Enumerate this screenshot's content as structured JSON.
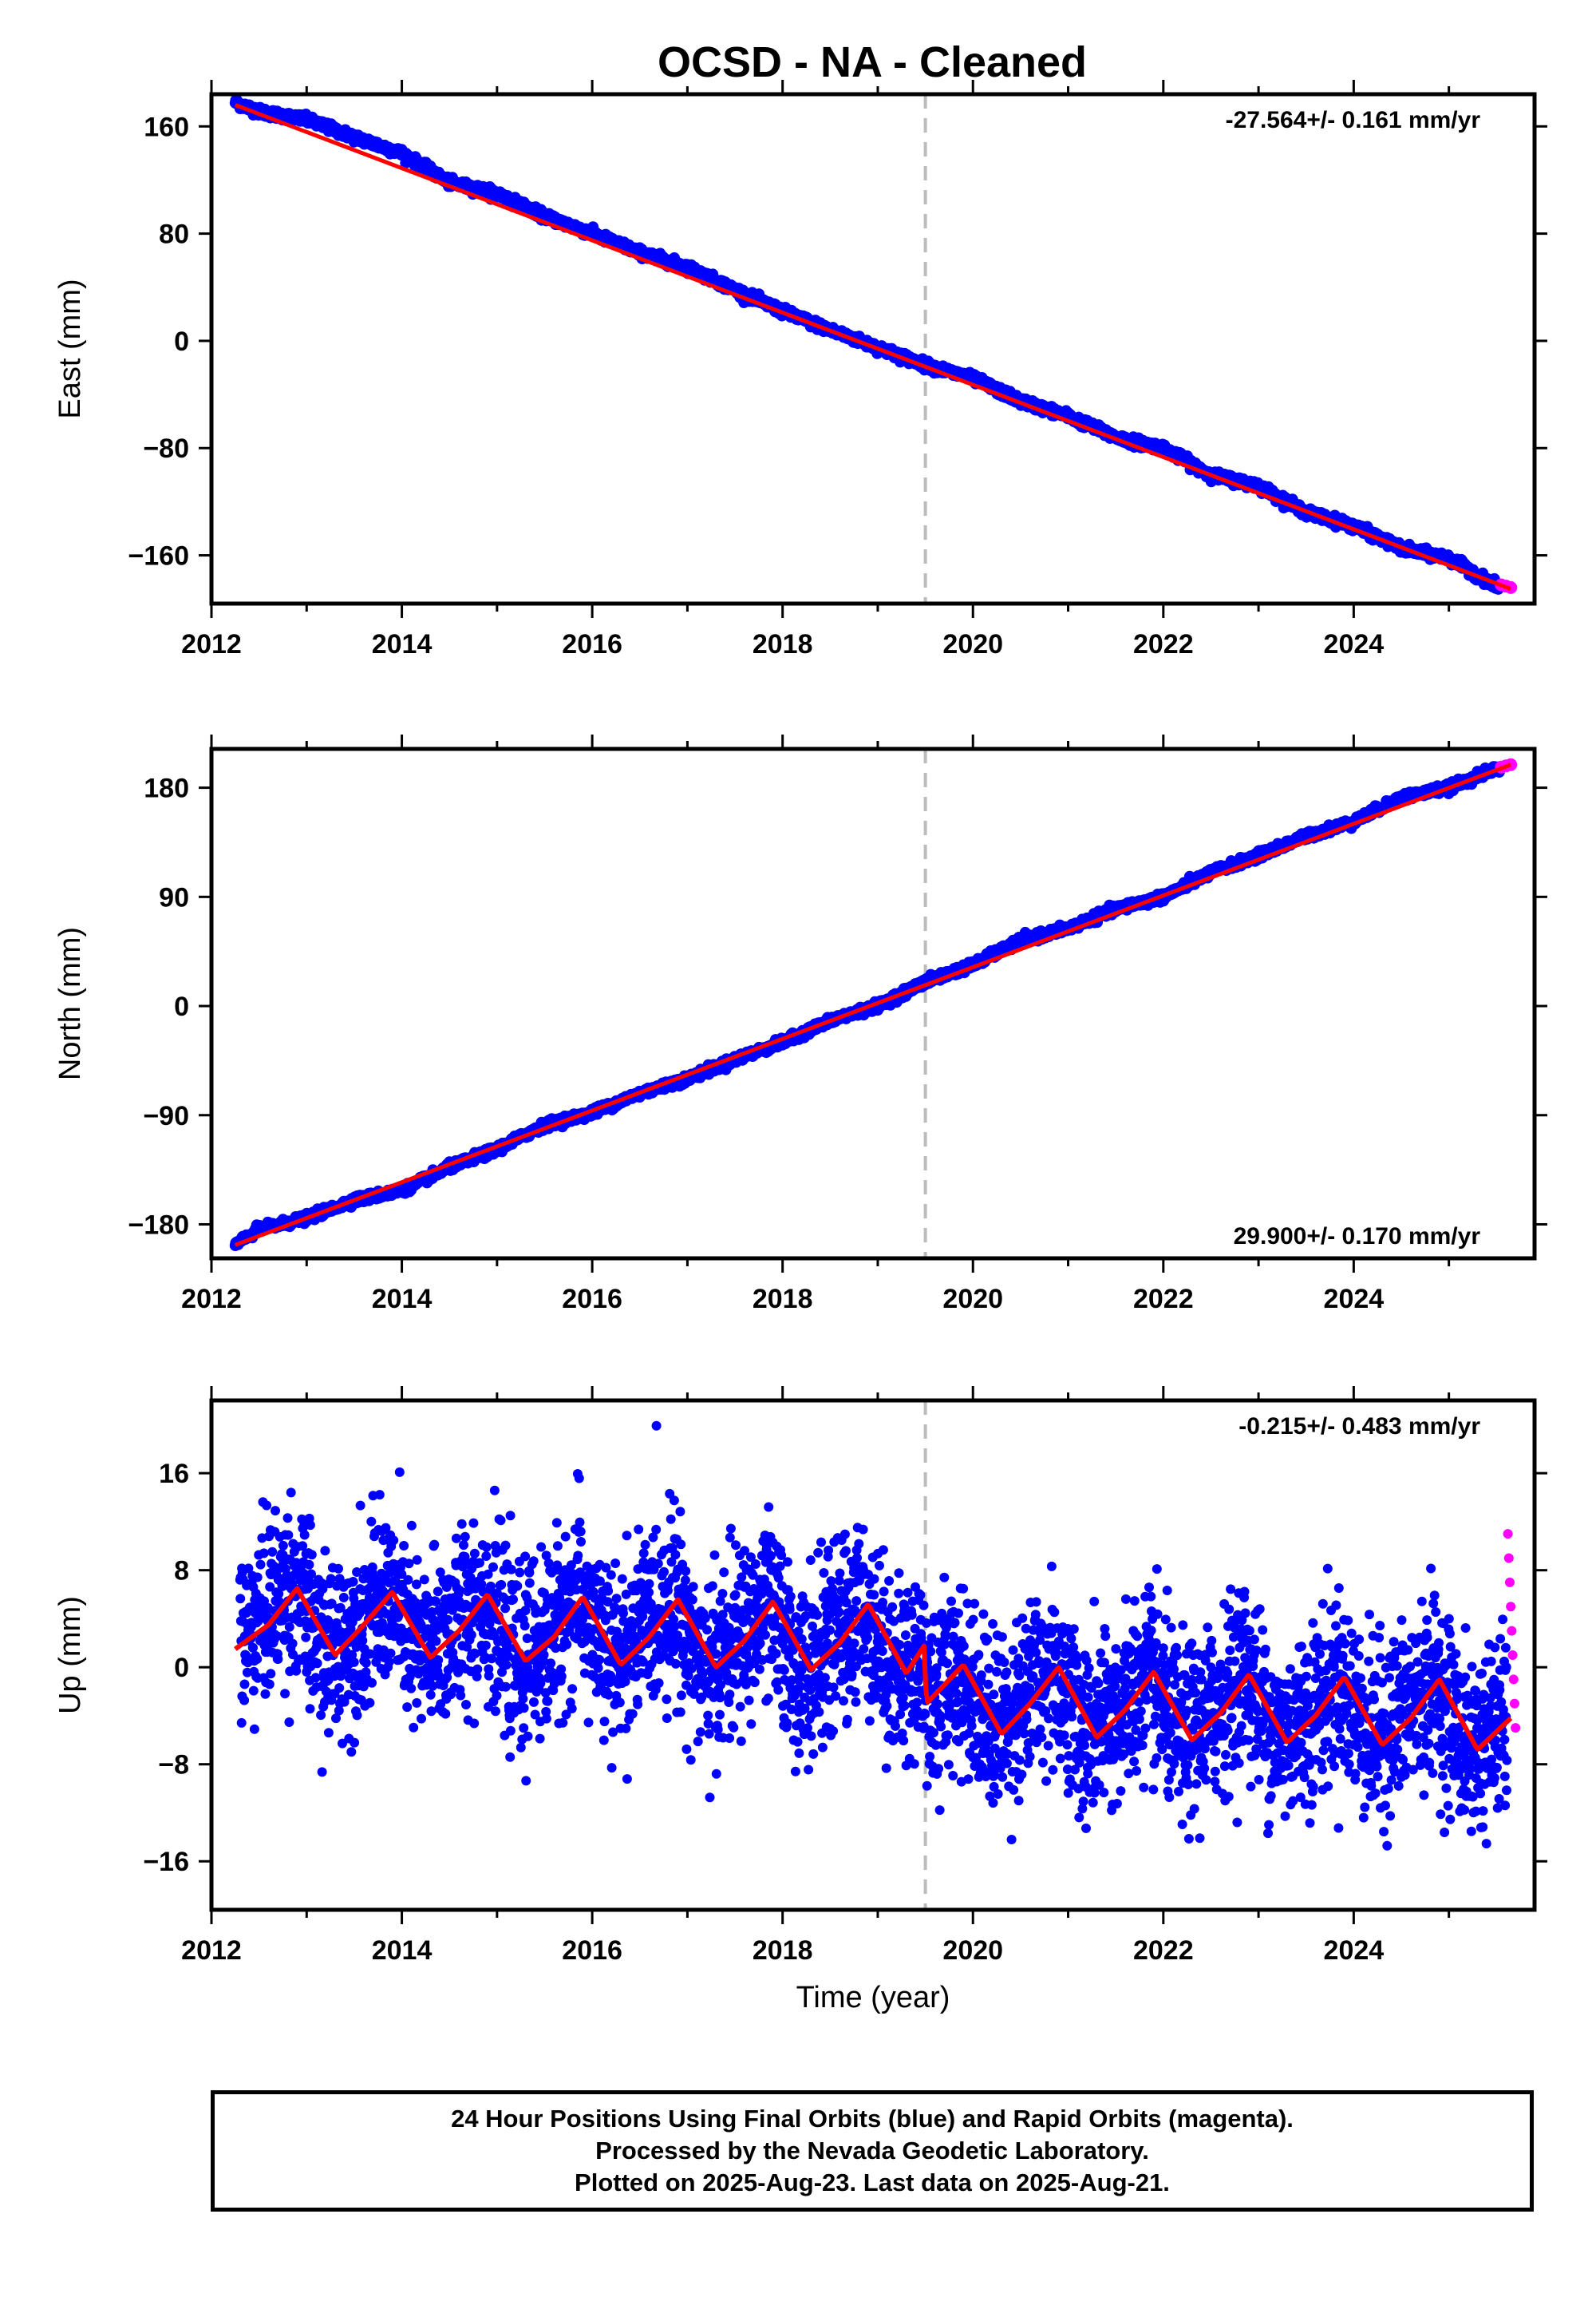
{
  "title": "OCSD  - NA - Cleaned",
  "colors": {
    "final": "#0000ff",
    "rapid": "#ff00ff",
    "model": "#ff0000",
    "event": "#bbbbbb"
  },
  "chart_data": [
    {
      "type": "scatter",
      "component": "East",
      "ylabel": "East (mm)",
      "rate_text": "-27.564+/- 0.161 mm/yr",
      "xlim": [
        2012.0,
        2025.9
      ],
      "ylim": [
        -196,
        184
      ],
      "yticks": [
        160,
        80,
        0,
        -80,
        -160
      ],
      "ytick_labels": [
        "160",
        "80",
        "0",
        "−80",
        "−160"
      ],
      "xticks": [
        2012,
        2014,
        2016,
        2018,
        2020,
        2022,
        2024
      ],
      "xtick_labels": [
        "2012",
        "2014",
        "2016",
        "2018",
        "2020",
        "2022",
        "2024"
      ],
      "event_line_x": 2019.5,
      "series": [
        {
          "role": "final",
          "x": [
            2012.25,
            2012.5,
            2013.0,
            2013.5,
            2014.0,
            2014.5,
            2015.0,
            2015.5,
            2016.0,
            2016.5,
            2017.0,
            2017.5,
            2018.0,
            2018.5,
            2019.0,
            2019.5,
            2020.0,
            2020.5,
            2021.0,
            2021.5,
            2022.0,
            2022.5,
            2023.0,
            2023.5,
            2024.0,
            2024.5,
            2025.0,
            2025.5
          ],
          "y": [
            178,
            171,
            165,
            152,
            140,
            118,
            110,
            93,
            80,
            66,
            55,
            38,
            22,
            8,
            -5,
            -18,
            -28,
            -45,
            -56,
            -72,
            -80,
            -100,
            -108,
            -128,
            -138,
            -155,
            -162,
            -183
          ]
        },
        {
          "role": "rapid",
          "x": [
            2025.55,
            2025.6,
            2025.65
          ],
          "y": [
            -182,
            -183,
            -184
          ]
        },
        {
          "role": "model",
          "x": [
            2012.25,
            2025.65
          ],
          "y": [
            176,
            -185
          ]
        }
      ]
    },
    {
      "type": "scatter",
      "component": "North",
      "ylabel": "North (mm)",
      "rate_text": "29.900+/- 0.170 mm/yr",
      "xlim": [
        2012.0,
        2025.9
      ],
      "ylim": [
        -208,
        212
      ],
      "yticks": [
        180,
        90,
        0,
        -90,
        -180
      ],
      "ytick_labels": [
        "180",
        "90",
        "0",
        "−90",
        "−180"
      ],
      "xticks": [
        2012,
        2014,
        2016,
        2018,
        2020,
        2022,
        2024
      ],
      "xtick_labels": [
        "2012",
        "2014",
        "2016",
        "2018",
        "2020",
        "2022",
        "2024"
      ],
      "event_line_x": 2019.5,
      "series": [
        {
          "role": "final",
          "x": [
            2012.25,
            2012.5,
            2013.0,
            2013.5,
            2014.0,
            2014.5,
            2015.0,
            2015.5,
            2016.0,
            2016.5,
            2017.0,
            2017.5,
            2018.0,
            2018.5,
            2019.0,
            2019.5,
            2020.0,
            2020.5,
            2021.0,
            2021.5,
            2022.0,
            2022.5,
            2023.0,
            2023.5,
            2024.0,
            2024.5,
            2025.0,
            2025.5
          ],
          "y": [
            -197,
            -184,
            -175,
            -160,
            -152,
            -133,
            -118,
            -98,
            -88,
            -72,
            -60,
            -44,
            -30,
            -12,
            0,
            20,
            34,
            54,
            64,
            80,
            90,
            110,
            124,
            140,
            152,
            172,
            180,
            196
          ]
        },
        {
          "role": "rapid",
          "x": [
            2025.55,
            2025.6,
            2025.65
          ],
          "y": [
            197,
            198,
            199
          ]
        },
        {
          "role": "model",
          "x": [
            2012.25,
            2025.65
          ],
          "y": [
            -197,
            199
          ]
        }
      ]
    },
    {
      "type": "scatter",
      "component": "Up",
      "ylabel": "Up (mm)",
      "rate_text": "-0.215+/- 0.483 mm/yr",
      "xlabel": "Time (year)",
      "xlim": [
        2012.0,
        2025.9
      ],
      "ylim": [
        -20,
        22
      ],
      "yticks": [
        16,
        8,
        0,
        -8,
        -16
      ],
      "ytick_labels": [
        "16",
        "8",
        "0",
        "−8",
        "−16"
      ],
      "xticks": [
        2012,
        2014,
        2016,
        2018,
        2020,
        2022,
        2024
      ],
      "xtick_labels": [
        "2012",
        "2014",
        "2016",
        "2018",
        "2020",
        "2022",
        "2024"
      ],
      "event_line_x": 2019.5,
      "series": [
        {
          "role": "final",
          "x": [
            2012.3,
            2012.5,
            2012.85,
            2013.2,
            2013.5,
            2013.85,
            2014.2,
            2014.5,
            2014.85,
            2015.2,
            2015.5,
            2015.85,
            2016.2,
            2016.5,
            2016.85,
            2017.2,
            2017.5,
            2017.85,
            2018.2,
            2018.5,
            2018.85,
            2019.2,
            2019.45,
            2019.55,
            2019.85,
            2020.2,
            2020.5,
            2020.85,
            2021.2,
            2021.5,
            2021.85,
            2022.2,
            2022.5,
            2022.85,
            2023.2,
            2023.5,
            2023.85,
            2024.2,
            2024.5,
            2024.85,
            2025.2,
            2025.5
          ],
          "y": [
            2,
            4,
            7,
            1,
            3,
            6,
            1,
            3,
            6,
            0,
            2,
            6,
            0,
            3,
            6,
            -1,
            2,
            5,
            -1,
            2,
            5,
            -1,
            1,
            -3,
            0,
            -5,
            -3,
            0,
            -6,
            -4,
            -1,
            -6,
            -4,
            0,
            -6,
            -4,
            -1,
            -6,
            -4,
            -1,
            -7,
            -5
          ]
        },
        {
          "role": "rapid",
          "x": [
            2025.62,
            2025.63,
            2025.64,
            2025.65,
            2025.66,
            2025.67,
            2025.68,
            2025.69,
            2025.7
          ],
          "y": [
            11,
            9,
            7,
            5,
            3,
            1,
            -1,
            -3,
            -5
          ]
        },
        {
          "role": "model",
          "x": [
            2012.25,
            2012.6,
            2012.9,
            2013.3,
            2013.6,
            2013.9,
            2014.3,
            2014.6,
            2014.9,
            2015.3,
            2015.6,
            2015.9,
            2016.3,
            2016.6,
            2016.9,
            2017.3,
            2017.6,
            2017.9,
            2018.3,
            2018.6,
            2018.9,
            2019.3,
            2019.49,
            2019.51,
            2019.9,
            2020.3,
            2020.6,
            2020.9,
            2021.3,
            2021.6,
            2021.9,
            2022.3,
            2022.6,
            2022.9,
            2023.3,
            2023.6,
            2023.9,
            2024.3,
            2024.6,
            2024.9,
            2025.3,
            2025.65
          ],
          "y": [
            1.5,
            3.5,
            6.5,
            1,
            3.5,
            6.2,
            0.8,
            3,
            6,
            0.5,
            2.5,
            5.8,
            0.2,
            2.5,
            5.6,
            0,
            2.2,
            5.4,
            -0.2,
            2,
            5.2,
            -0.5,
            1.8,
            -3,
            0.2,
            -5.5,
            -3,
            0,
            -5.8,
            -3.5,
            -0.4,
            -6,
            -3.8,
            -0.6,
            -6.2,
            -4,
            -0.8,
            -6.4,
            -4.2,
            -1,
            -6.8,
            -4.2
          ]
        }
      ]
    }
  ],
  "footer": {
    "line1": "24 Hour Positions Using Final Orbits (blue) and Rapid Orbits (magenta).",
    "line2": "Processed by the Nevada Geodetic Laboratory.",
    "line3": "Plotted on 2025-Aug-23. Last data on 2025-Aug-21."
  }
}
